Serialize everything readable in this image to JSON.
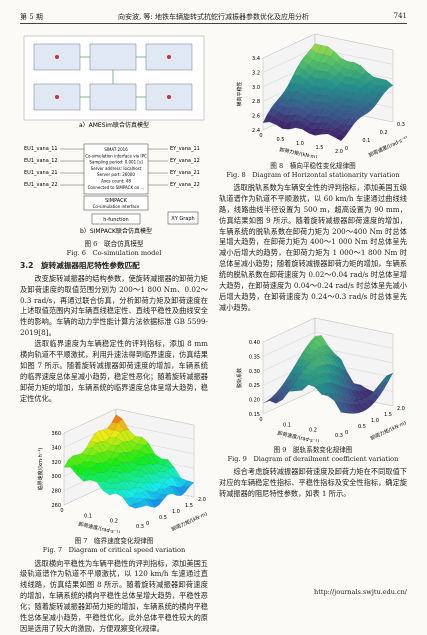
{
  "header": {
    "issue": "第 5 期",
    "title": "向安波, 等: 地铁车辆旋转式抗蛇行减振器参数优化及应用分析",
    "page": "741"
  },
  "fig6": {
    "sub_a": "a）AMESim联合仿真模型",
    "sub_b": "b）SIMPACK联合仿真模型",
    "in_ports": [
      "EU1_vana_11",
      "EU1_vana_12",
      "EU1_vana_21",
      "EU1_vana_22"
    ],
    "out_ports": [
      "EY_vana_11",
      "EY_vana_12",
      "EY_vana_21",
      "EY_vana_22"
    ],
    "interface_lines": [
      "SIMAT 2016",
      "Co-simulation interface via IPC",
      "Sampling period: 0.001 [s]",
      "Server address: localhost",
      "Server port: 26000",
      "Axes count: 48",
      "Connected to SIMPACK on ..."
    ],
    "block_title": "SIMPACK",
    "block_subtitle": "Co-simulation interface",
    "function_label": "h-function",
    "graph_label": "XY Graph",
    "caption_cn": "图 6　联合仿真模型",
    "caption_en": "Fig. 6　Co-simulation model"
  },
  "section": {
    "heading": "3.2　旋转减振器阻尼特性参数匹配",
    "paragraphs": [
      "改变旋转减振器的结构参数，使旋转减振器的卸荷力矩及卸荷速度的取值范围分别为 200～1 800 Nm、0.02～0.3 rad/s，再通过联合仿真，分析卸荷力矩及卸荷速度在上述取值范围内对车辆直线稳定性、直线平稳性及曲线安全性的影响。车辆的动力学性能计算方法依据标准 GB 5599-2019[8]。",
      "选取临界速度为车辆稳定性的评判指标，添加 8 mm 横向轨道不平顺激扰，利用升速法得到临界速度，仿真结果如图 7 所示。随着旋转减振器卸荷速度的增加，车辆系统的临界速度总体呈减小趋势，稳定性恶化；随着旋转减振器卸荷力矩的增加，车辆系统的临界速度总体呈增大趋势，稳定性优化。",
      "选取横向平稳性为车辆平稳性的评判指标，添加美国五级轨道谱作为轨道不平顺激扰，以 120 km/h 车速通过直线线路，仿真结果如图 8 所示。随着旋转减振器卸荷速度的增加，车辆系统的横向平稳性总体呈增大趋势，平稳性恶化；随着旋转减振器卸荷力矩的增加，车辆系统的横向平稳性总体呈减小趋势，平稳性优化。此外总体平稳性较大的原因是选用了较大的激励，方便观察变化规律。",
      "选取脱轨系数为车辆安全性的评判指标，添加美国五级轨道谱作为轨道不平顺激扰，以 60 km/h 车速通过曲线线路，线路曲线半径设置为 500 m，超高设置为 90 mm，仿真结果如图 9 所示。随着旋转减振器卸荷速度的增加，车辆系统的脱轨系数在卸荷力矩为 200～400 Nm 时总体呈增大趋势，在卸荷力矩为 400～1 000 Nm 时总体呈先减小后增大的趋势，在卸荷力矩为 1 000～1 800 Nm 时总体呈减小趋势；随着旋转减振器卸荷力矩的增加，车辆系统的脱轨系数在卸荷速度为 0.02～0.04 rad/s 时总体呈增大趋势，在卸荷速度为 0.04～0.24 rad/s 时总体呈先减小后增大趋势，在卸荷速度为 0.24～0.3 rad/s 时总体呈先减小趋势。",
      "综合考虑旋转减振器卸荷速度及卸荷力矩在不同取值下对应的车辆稳定性指标、平稳性指标及安全性指标，确定旋转减振器的阻尼特性参数，如表 1 所示。"
    ]
  },
  "fig7": {
    "zlabel": "临界速度/(km·h⁻¹)",
    "ulabel": "卸荷速度/(rad·s⁻¹)",
    "vlabel": "卸荷力矩/(kN·m)",
    "zticks": [
      "260",
      "280",
      "300",
      "320",
      "340",
      "360"
    ],
    "uticks": [
      "0",
      "0.1",
      "0.2",
      "0.3"
    ],
    "vticks": [
      "0",
      "0.5",
      "1.0",
      "1.5",
      "2.0"
    ],
    "caption_cn": "图 7　临界速度变化规律图",
    "caption_en": "Fig. 7　Diagram of critical speed variation"
  },
  "fig8": {
    "zlabel": "横向平稳性",
    "ulabel": "卸荷力矩/(kN·m)",
    "vlabel": "卸荷速度/(rad·s⁻¹)",
    "zticks": [
      "2.4",
      "2.6",
      "2.8",
      "3.0",
      "3.2",
      "3.4"
    ],
    "uticks": [
      "0",
      "0.5",
      "1.0",
      "1.5",
      "2.0"
    ],
    "vticks": [
      "0",
      "0.1",
      "0.2",
      "0.3"
    ],
    "caption_cn": "图 8　横向平稳性变化规律图",
    "caption_en": "Fig. 8　Diagram of Horizontal stationarity variation"
  },
  "fig9": {
    "zlabel": "脱轨系数",
    "ulabel": "卸荷速度/(rad·s⁻¹)",
    "vlabel": "卸荷力矩/(kN·m)",
    "zticks": [
      "0.15",
      "0.20",
      "0.25",
      "0.30",
      "0.35",
      "0.40"
    ],
    "uticks": [
      "0",
      "0.1",
      "0.2",
      "0.3"
    ],
    "vticks": [
      "0",
      "0.5",
      "1.0",
      "1.5",
      "2.0"
    ],
    "caption_cn": "图 9　脱轨系数变化规律图",
    "caption_en": "Fig. 9　Diagram of derailment coefficient variation"
  },
  "footer": {
    "url": "http://journals.swjtu.edu.cn/"
  }
}
